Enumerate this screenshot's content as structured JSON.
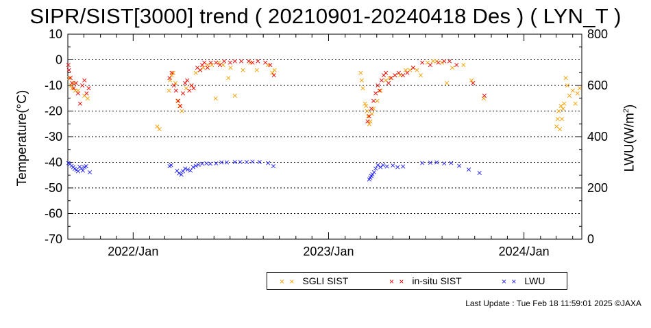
{
  "chart_data": {
    "type": "scatter",
    "title": "SIPR/SIST[3000] trend ( 20210901-20240418 Des ) ( LYN_T )",
    "ylabel": "Temperature(°C)",
    "ylabel_right": "LWU(W/m",
    "ylabel_right_sup": "2",
    "ylabel_right_close": ")",
    "xlim": [
      "2021-09-01",
      "2024-04-18"
    ],
    "ylim": [
      -70,
      10
    ],
    "ylim_right": [
      0,
      800
    ],
    "grid": "horizontal dotted",
    "yticks": [
      "10",
      "0",
      "-10",
      "-20",
      "-30",
      "-40",
      "-50",
      "-60",
      "-70"
    ],
    "yticks_right": [
      "800",
      "600",
      "400",
      "200",
      "0"
    ],
    "xticks": [
      {
        "label": "2022/Jan",
        "date": "2022-01-01"
      },
      {
        "label": "2023/Jan",
        "date": "2023-01-01"
      },
      {
        "label": "2024/Jan",
        "date": "2024-01-01"
      }
    ],
    "series": [
      {
        "name": "SGLI SIST",
        "axis": "left",
        "color": "#f5a000",
        "points": [
          [
            "2021-09-04",
            -7
          ],
          [
            "2021-09-07",
            -10
          ],
          [
            "2021-09-09",
            -11
          ],
          [
            "2021-09-12",
            -9
          ],
          [
            "2021-09-15",
            -12
          ],
          [
            "2021-09-20",
            -12
          ],
          [
            "2021-10-02",
            -14
          ],
          [
            "2021-10-08",
            -15
          ],
          [
            "2022-02-15",
            -26
          ],
          [
            "2022-02-19",
            -27
          ],
          [
            "2022-03-09",
            -12
          ],
          [
            "2022-03-11",
            -8
          ],
          [
            "2022-03-14",
            -6
          ],
          [
            "2022-03-17",
            -5
          ],
          [
            "2022-03-21",
            -9
          ],
          [
            "2022-03-25",
            -16
          ],
          [
            "2022-03-29",
            -18
          ],
          [
            "2022-04-02",
            -20
          ],
          [
            "2022-04-10",
            -11
          ],
          [
            "2022-04-20",
            -10
          ],
          [
            "2022-04-28",
            -5
          ],
          [
            "2022-05-06",
            -4
          ],
          [
            "2022-05-12",
            -3
          ],
          [
            "2022-05-20",
            -2
          ],
          [
            "2022-05-28",
            -2
          ],
          [
            "2022-06-04",
            -15
          ],
          [
            "2022-06-10",
            -1
          ],
          [
            "2022-06-18",
            -2
          ],
          [
            "2022-06-28",
            -7
          ],
          [
            "2022-07-02",
            -3
          ],
          [
            "2022-07-10",
            -14
          ],
          [
            "2022-07-25",
            -4
          ],
          [
            "2022-08-08",
            -1
          ],
          [
            "2022-08-20",
            -4
          ],
          [
            "2022-09-10",
            -2
          ],
          [
            "2022-09-18",
            -5
          ],
          [
            "2022-09-22",
            -4
          ],
          [
            "2023-03-02",
            -5
          ],
          [
            "2023-03-04",
            -8
          ],
          [
            "2023-03-06",
            -11
          ],
          [
            "2023-03-10",
            -17
          ],
          [
            "2023-03-12",
            -18
          ],
          [
            "2023-03-14",
            -20
          ],
          [
            "2023-03-16",
            -22
          ],
          [
            "2023-03-18",
            -25
          ],
          [
            "2023-03-20",
            -24
          ],
          [
            "2023-03-23",
            -21
          ],
          [
            "2023-03-26",
            -19
          ],
          [
            "2023-04-02",
            -16
          ],
          [
            "2023-04-08",
            -12
          ],
          [
            "2023-04-18",
            -8
          ],
          [
            "2023-04-25",
            -7
          ],
          [
            "2023-05-05",
            -6
          ],
          [
            "2023-05-15",
            -6
          ],
          [
            "2023-05-25",
            -4
          ],
          [
            "2023-06-02",
            -4
          ],
          [
            "2023-06-08",
            -3
          ],
          [
            "2023-06-15",
            -4
          ],
          [
            "2023-06-22",
            -6
          ],
          [
            "2023-07-05",
            -1
          ],
          [
            "2023-07-15",
            -0.5
          ],
          [
            "2023-07-22",
            -0.5
          ],
          [
            "2023-08-01",
            -1
          ],
          [
            "2023-08-10",
            -9
          ],
          [
            "2023-08-20",
            -3
          ],
          [
            "2023-09-10",
            -2
          ],
          [
            "2023-09-25",
            -8
          ],
          [
            "2023-10-18",
            -15
          ],
          [
            "2024-03-02",
            -26
          ],
          [
            "2024-03-04",
            -23
          ],
          [
            "2024-03-06",
            -20
          ],
          [
            "2024-03-08",
            -27
          ],
          [
            "2024-03-10",
            -18
          ],
          [
            "2024-03-12",
            -23
          ],
          [
            "2024-03-14",
            -19
          ],
          [
            "2024-03-16",
            -17
          ],
          [
            "2024-03-19",
            -7
          ],
          [
            "2024-03-22",
            -10
          ],
          [
            "2024-03-26",
            -14
          ],
          [
            "2024-04-01",
            -12
          ],
          [
            "2024-04-06",
            -17
          ],
          [
            "2024-04-10",
            -13
          ],
          [
            "2024-04-14",
            -11
          ]
        ]
      },
      {
        "name": "in-situ SIST",
        "axis": "left",
        "color": "#ee0000",
        "points": [
          [
            "2021-09-02",
            -2
          ],
          [
            "2021-09-03",
            -4
          ],
          [
            "2021-09-06",
            -7
          ],
          [
            "2021-09-09",
            -9
          ],
          [
            "2021-09-12",
            -11
          ],
          [
            "2021-09-16",
            -9
          ],
          [
            "2021-09-20",
            -13
          ],
          [
            "2021-09-24",
            -17
          ],
          [
            "2021-09-28",
            -10
          ],
          [
            "2021-10-02",
            -8
          ],
          [
            "2021-10-06",
            -13
          ],
          [
            "2021-10-10",
            -11
          ],
          [
            "2022-03-10",
            -7
          ],
          [
            "2022-03-14",
            -5
          ],
          [
            "2022-03-18",
            -10
          ],
          [
            "2022-03-22",
            -12
          ],
          [
            "2022-03-26",
            -16
          ],
          [
            "2022-03-30",
            -18
          ],
          [
            "2022-04-04",
            -13
          ],
          [
            "2022-04-08",
            -9
          ],
          [
            "2022-04-12",
            -8
          ],
          [
            "2022-04-16",
            -12
          ],
          [
            "2022-04-20",
            -10
          ],
          [
            "2022-04-24",
            -11
          ],
          [
            "2022-05-01",
            -3
          ],
          [
            "2022-05-06",
            -4
          ],
          [
            "2022-05-10",
            -2
          ],
          [
            "2022-05-14",
            -1
          ],
          [
            "2022-05-20",
            -3
          ],
          [
            "2022-05-26",
            -1
          ],
          [
            "2022-06-05",
            -1
          ],
          [
            "2022-06-12",
            -2
          ],
          [
            "2022-06-20",
            -0.5
          ],
          [
            "2022-07-01",
            -1
          ],
          [
            "2022-07-10",
            -0.5
          ],
          [
            "2022-07-22",
            -0.5
          ],
          [
            "2022-08-05",
            -0.5
          ],
          [
            "2022-08-12",
            -1
          ],
          [
            "2022-08-22",
            -0.5
          ],
          [
            "2022-09-05",
            -1
          ],
          [
            "2022-09-14",
            -2
          ],
          [
            "2022-09-21",
            -6
          ],
          [
            "2023-03-15",
            -24
          ],
          [
            "2023-03-18",
            -22
          ],
          [
            "2023-03-22",
            -19
          ],
          [
            "2023-03-26",
            -16
          ],
          [
            "2023-03-30",
            -13
          ],
          [
            "2023-04-03",
            -10
          ],
          [
            "2023-04-06",
            -12
          ],
          [
            "2023-04-10",
            -8
          ],
          [
            "2023-04-14",
            -6
          ],
          [
            "2023-04-18",
            -5
          ],
          [
            "2023-04-23",
            -9
          ],
          [
            "2023-04-28",
            -7
          ],
          [
            "2023-05-05",
            -6
          ],
          [
            "2023-05-12",
            -5
          ],
          [
            "2023-05-20",
            -6
          ],
          [
            "2023-05-28",
            -5
          ],
          [
            "2023-06-08",
            -3
          ],
          [
            "2023-06-25",
            -1
          ],
          [
            "2023-07-10",
            -2
          ],
          [
            "2023-07-25",
            -1
          ],
          [
            "2023-08-05",
            -0.5
          ],
          [
            "2023-08-15",
            -0.5
          ],
          [
            "2023-08-28",
            -2
          ],
          [
            "2023-09-28",
            -9
          ],
          [
            "2023-10-19",
            -14
          ]
        ]
      },
      {
        "name": "LWU",
        "axis": "right",
        "color": "#1a1aff",
        "points": [
          [
            "2021-09-02",
            297
          ],
          [
            "2021-09-05",
            293
          ],
          [
            "2021-09-08",
            287
          ],
          [
            "2021-09-11",
            281
          ],
          [
            "2021-09-14",
            275
          ],
          [
            "2021-09-17",
            271
          ],
          [
            "2021-09-20",
            265
          ],
          [
            "2021-09-23",
            283
          ],
          [
            "2021-09-26",
            276
          ],
          [
            "2021-09-29",
            268
          ],
          [
            "2021-10-02",
            281
          ],
          [
            "2021-10-05",
            286
          ],
          [
            "2021-10-12",
            261
          ],
          [
            "2022-03-10",
            286
          ],
          [
            "2022-03-13",
            290
          ],
          [
            "2022-03-24",
            267
          ],
          [
            "2022-03-28",
            258
          ],
          [
            "2022-04-01",
            252
          ],
          [
            "2022-04-04",
            265
          ],
          [
            "2022-04-08",
            276
          ],
          [
            "2022-04-13",
            272
          ],
          [
            "2022-04-18",
            268
          ],
          [
            "2022-04-23",
            281
          ],
          [
            "2022-04-28",
            287
          ],
          [
            "2022-05-03",
            291
          ],
          [
            "2022-05-10",
            295
          ],
          [
            "2022-05-18",
            296
          ],
          [
            "2022-05-25",
            295
          ],
          [
            "2022-06-05",
            296
          ],
          [
            "2022-06-15",
            300
          ],
          [
            "2022-06-25",
            300
          ],
          [
            "2022-07-10",
            301
          ],
          [
            "2022-07-20",
            302
          ],
          [
            "2022-08-01",
            302
          ],
          [
            "2022-08-12",
            303
          ],
          [
            "2022-08-25",
            301
          ],
          [
            "2022-09-10",
            297
          ],
          [
            "2022-09-20",
            286
          ],
          [
            "2023-03-18",
            234
          ],
          [
            "2023-03-20",
            240
          ],
          [
            "2023-03-22",
            247
          ],
          [
            "2023-03-24",
            253
          ],
          [
            "2023-03-27",
            262
          ],
          [
            "2023-03-30",
            276
          ],
          [
            "2023-04-03",
            290
          ],
          [
            "2023-04-08",
            282
          ],
          [
            "2023-04-13",
            289
          ],
          [
            "2023-04-20",
            284
          ],
          [
            "2023-05-01",
            288
          ],
          [
            "2023-05-10",
            282
          ],
          [
            "2023-05-20",
            284
          ],
          [
            "2023-06-25",
            298
          ],
          [
            "2023-07-10",
            299
          ],
          [
            "2023-07-22",
            300
          ],
          [
            "2023-08-05",
            296
          ],
          [
            "2023-08-18",
            298
          ],
          [
            "2023-09-02",
            287
          ],
          [
            "2023-09-20",
            272
          ],
          [
            "2023-10-10",
            259
          ]
        ]
      }
    ]
  },
  "legend": {
    "sgli_label": "SGLI SIST",
    "insitu_label": "in-situ SIST",
    "lwu_label": "LWU",
    "mark": "× ×"
  },
  "footer": {
    "update_text": "Last Update : Tue Feb 18 11:59:01 2025  ©JAXA"
  }
}
